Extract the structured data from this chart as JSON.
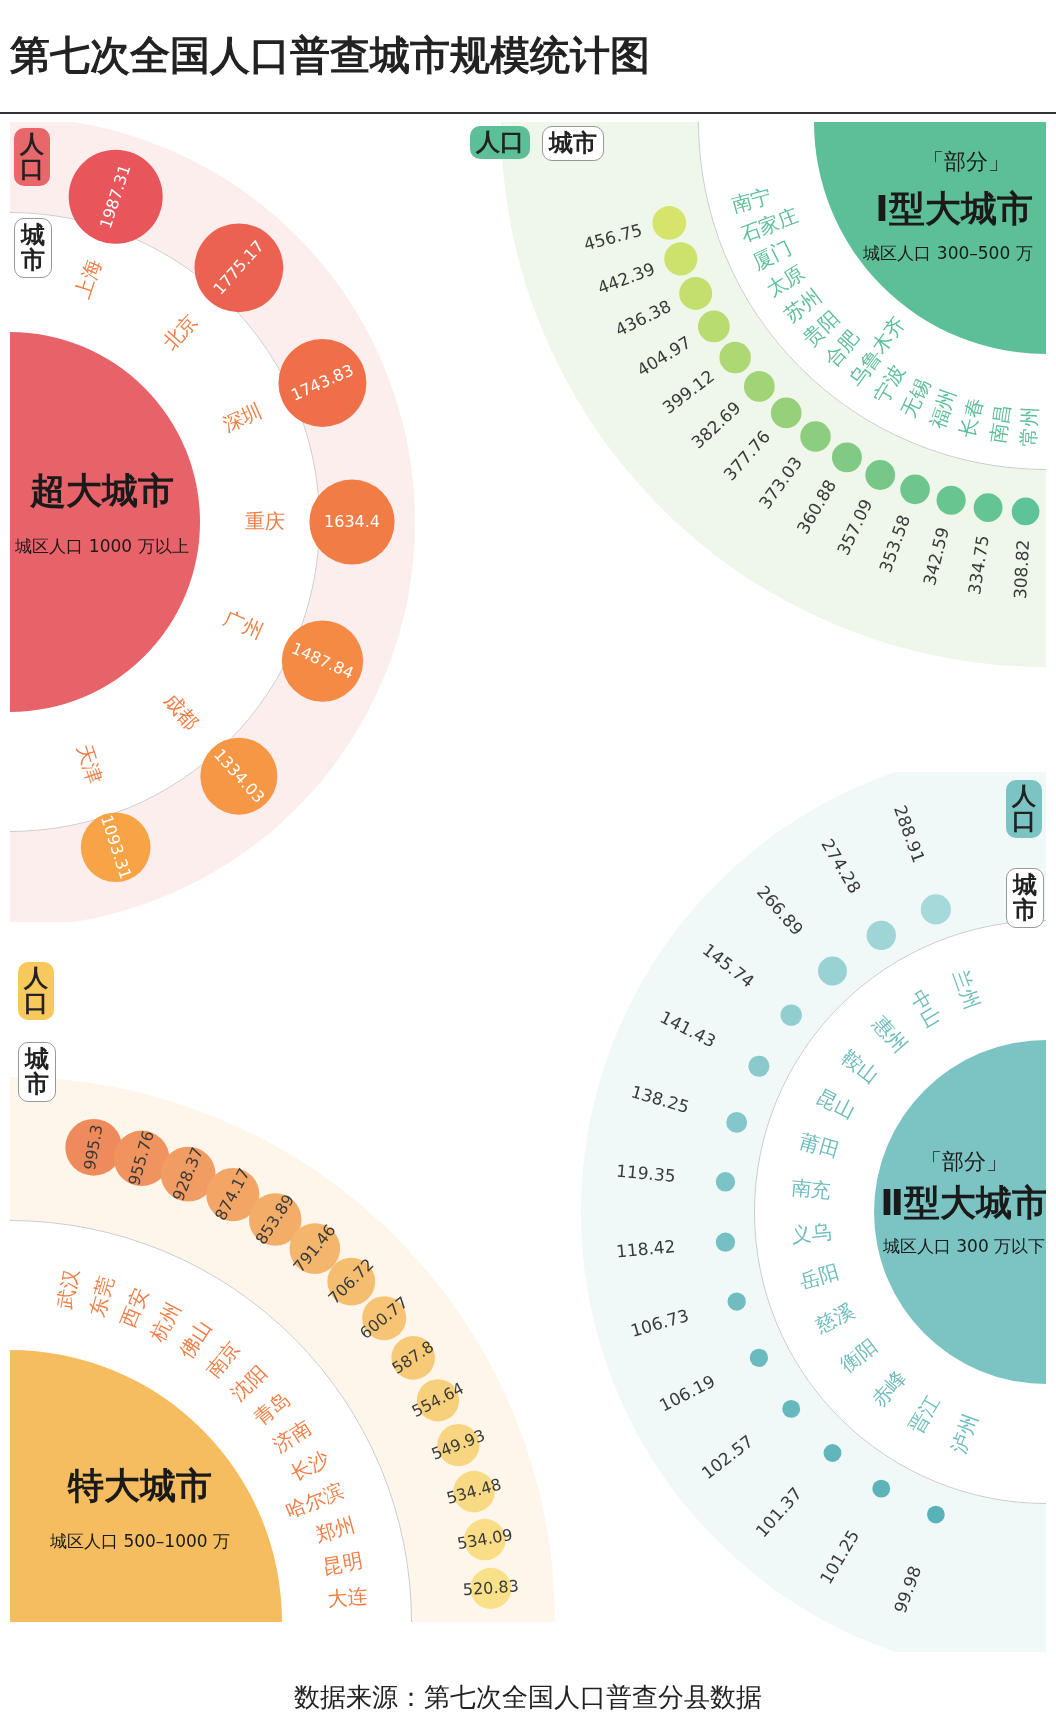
{
  "chart_data": [
    {
      "type": "other",
      "title": "第七次全国人口普查城市规模统计图",
      "annotations": [
        "数据来源：第七次全国人口普查分县数据"
      ]
    },
    {
      "type": "other",
      "title": "超大城市",
      "subtitle": "城区人口 1000 万以上",
      "xlabel": "城市",
      "ylabel": "人口",
      "data_labels": true,
      "categories": [
        "上海",
        "北京",
        "深圳",
        "重庆",
        "广州",
        "成都",
        "天津"
      ],
      "values": [
        1987.31,
        1775.17,
        1743.83,
        1634.4,
        1487.84,
        1334.03,
        1093.31
      ],
      "colors": [
        "#e8555a",
        "#ec6250",
        "#ef7048",
        "#f17c45",
        "#f48a44",
        "#f59744",
        "#f6a445"
      ]
    },
    {
      "type": "other",
      "title": "Ⅰ型大城市",
      "subtitle": "城区人口 300–500 万",
      "xlabel": "城市",
      "ylabel": "人口",
      "annotations": [
        "「部分」"
      ],
      "data_labels": true,
      "categories": [
        "南宁",
        "石家庄",
        "厦门",
        "太原",
        "苏州",
        "贵阳",
        "合肥",
        "乌鲁木齐",
        "宁波",
        "无锡",
        "福州",
        "长春",
        "南昌",
        "常州"
      ],
      "values": [
        456.75,
        442.39,
        436.38,
        404.97,
        399.12,
        382.69,
        377.76,
        373.03,
        360.88,
        357.09,
        353.58,
        342.59,
        334.75,
        308.82
      ],
      "colors": [
        "#d6e46c",
        "#cde26c",
        "#c3df6e",
        "#b9dc71",
        "#aed874",
        "#a2d477",
        "#97d07b",
        "#8ccd7f",
        "#81ca84",
        "#77c788",
        "#6fc68c",
        "#69c590",
        "#64c494",
        "#5fc398"
      ]
    },
    {
      "type": "other",
      "title": "特大城市",
      "subtitle": "城区人口 500–1000 万",
      "xlabel": "城市",
      "ylabel": "人口",
      "data_labels": true,
      "categories": [
        "武汉",
        "东莞",
        "西安",
        "杭州",
        "佛山",
        "南京",
        "沈阳",
        "青岛",
        "济南",
        "长沙",
        "哈尔滨",
        "郑州",
        "昆明",
        "大连"
      ],
      "values": [
        995.3,
        955.76,
        928.37,
        874.17,
        853.89,
        791.46,
        706.72,
        600.77,
        587.8,
        554.64,
        549.93,
        534.48,
        534.09,
        520.83
      ],
      "colors": [
        "#ef8a5c",
        "#f0935f",
        "#f19c62",
        "#f2a565",
        "#f3ad68",
        "#f4b56c",
        "#f5bd70",
        "#f6c474",
        "#f7ca78",
        "#f7d07c",
        "#f8d580",
        "#f8da84",
        "#f9de87",
        "#f9e18a"
      ]
    },
    {
      "type": "other",
      "title": "Ⅱ型大城市",
      "subtitle": "城区人口 300 万以下",
      "xlabel": "城市",
      "ylabel": "人口",
      "annotations": [
        "「部分」"
      ],
      "data_labels": true,
      "categories": [
        "兰州",
        "中山",
        "惠州",
        "鞍山",
        "昆山",
        "莆田",
        "南充",
        "义乌",
        "岳阳",
        "慈溪",
        "衡阳",
        "赤峰",
        "晋江",
        "泸州"
      ],
      "values": [
        288.91,
        274.28,
        266.89,
        145.74,
        141.43,
        138.25,
        119.35,
        118.42,
        106.73,
        106.19,
        102.57,
        101.37,
        101.25,
        99.98
      ],
      "colors": [
        "#a6d9d9",
        "#9fd5d6",
        "#98d2d3",
        "#91ced0",
        "#8acacd",
        "#83c7ca",
        "#7cc3c7",
        "#76c0c4",
        "#70bdc1",
        "#6abbbf",
        "#65b9bd",
        "#60b6bb",
        "#5cb4b9",
        "#58b2b7"
      ]
    }
  ]
}
